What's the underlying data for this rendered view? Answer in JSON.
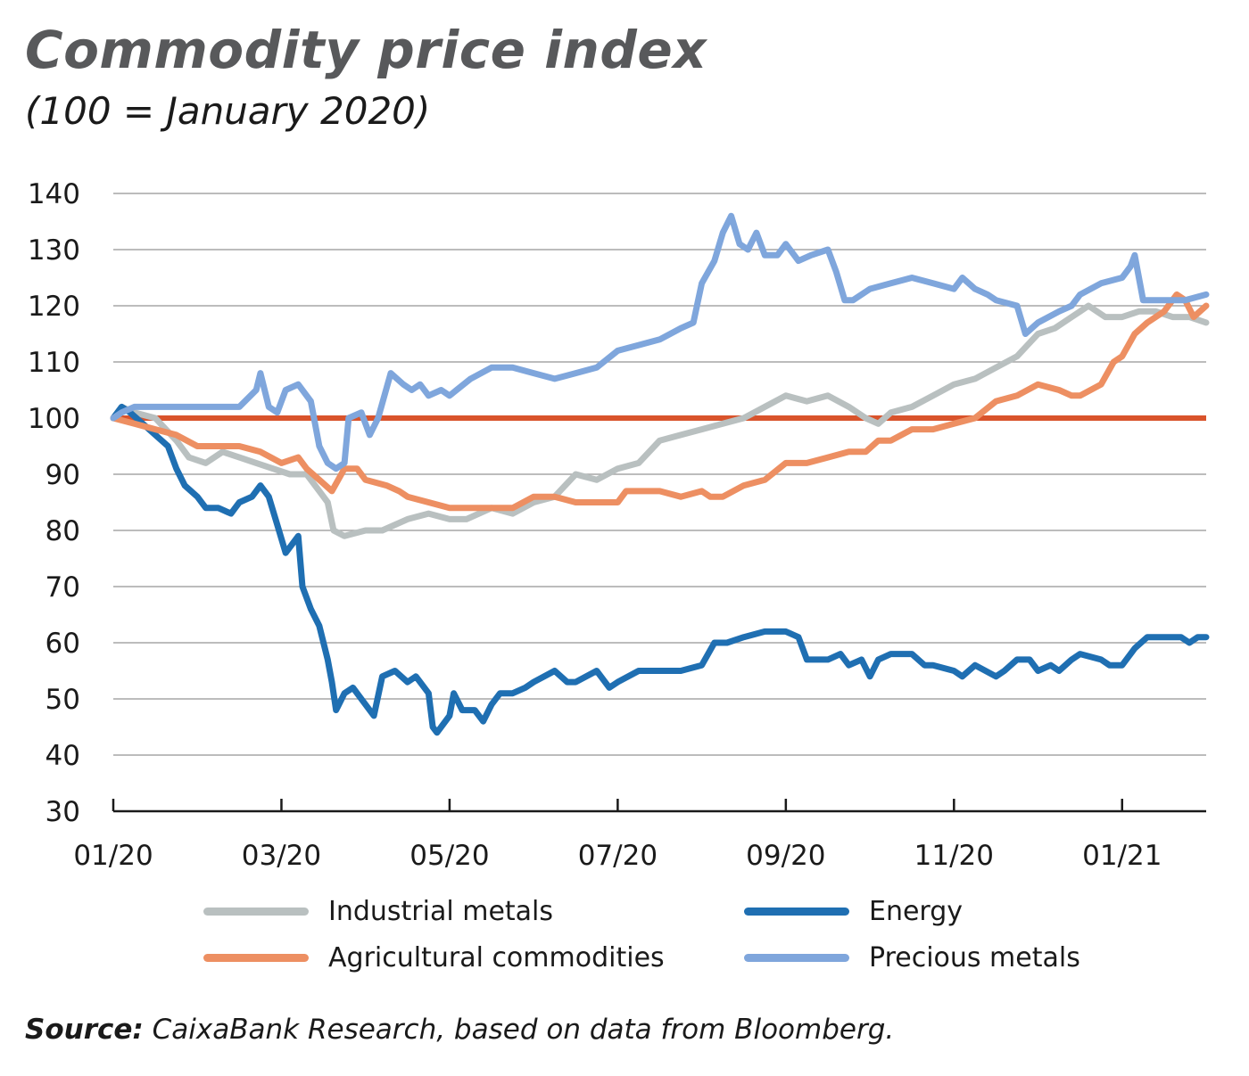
{
  "header": {
    "title": "Commodity price index",
    "subtitle": "(100 = January 2020)"
  },
  "source": {
    "label": "Source:",
    "text": "CaixaBank Research, based on data from Bloomberg."
  },
  "chart_data": {
    "type": "line",
    "title": "Commodity price index",
    "subtitle": "(100 = January 2020)",
    "xlabel": "",
    "ylabel": "",
    "ylim": [
      30,
      140
    ],
    "yticks": [
      30,
      40,
      50,
      60,
      70,
      80,
      90,
      100,
      110,
      120,
      130,
      140
    ],
    "xlim": [
      0,
      13.0
    ],
    "xticks": [
      {
        "pos": 0,
        "label": "01/20"
      },
      {
        "pos": 2,
        "label": "03/20"
      },
      {
        "pos": 4,
        "label": "05/20"
      },
      {
        "pos": 6,
        "label": "07/20"
      },
      {
        "pos": 8,
        "label": "09/20"
      },
      {
        "pos": 10,
        "label": "11/20"
      },
      {
        "pos": 12,
        "label": "01/21"
      }
    ],
    "grid": "horizontal",
    "legend_position": "bottom",
    "reference_line": {
      "y": 100,
      "color": "#d9532b"
    },
    "series": [
      {
        "name": "Industrial metals",
        "color": "#b9c0c0",
        "points": [
          [
            0,
            100
          ],
          [
            0.1,
            102
          ],
          [
            0.25,
            101
          ],
          [
            0.5,
            100
          ],
          [
            0.75,
            96
          ],
          [
            0.9,
            93
          ],
          [
            1.1,
            92
          ],
          [
            1.3,
            94
          ],
          [
            1.5,
            93
          ],
          [
            1.7,
            92
          ],
          [
            1.9,
            91
          ],
          [
            2.1,
            90
          ],
          [
            2.3,
            90
          ],
          [
            2.45,
            87
          ],
          [
            2.55,
            85
          ],
          [
            2.62,
            80
          ],
          [
            2.75,
            79
          ],
          [
            3.0,
            80
          ],
          [
            3.2,
            80
          ],
          [
            3.5,
            82
          ],
          [
            3.75,
            83
          ],
          [
            4.0,
            82
          ],
          [
            4.2,
            82
          ],
          [
            4.5,
            84
          ],
          [
            4.75,
            83
          ],
          [
            5.0,
            85
          ],
          [
            5.25,
            86
          ],
          [
            5.5,
            90
          ],
          [
            5.75,
            89
          ],
          [
            6.0,
            91
          ],
          [
            6.25,
            92
          ],
          [
            6.5,
            96
          ],
          [
            6.75,
            97
          ],
          [
            7.0,
            98
          ],
          [
            7.25,
            99
          ],
          [
            7.5,
            100
          ],
          [
            7.75,
            102
          ],
          [
            8.0,
            104
          ],
          [
            8.25,
            103
          ],
          [
            8.5,
            104
          ],
          [
            8.75,
            102
          ],
          [
            8.95,
            100
          ],
          [
            9.1,
            99
          ],
          [
            9.25,
            101
          ],
          [
            9.5,
            102
          ],
          [
            9.75,
            104
          ],
          [
            10.0,
            106
          ],
          [
            10.25,
            107
          ],
          [
            10.5,
            109
          ],
          [
            10.75,
            111
          ],
          [
            11.0,
            115
          ],
          [
            11.2,
            116
          ],
          [
            11.4,
            118
          ],
          [
            11.5,
            119
          ],
          [
            11.6,
            120
          ],
          [
            11.8,
            118
          ],
          [
            12.0,
            118
          ],
          [
            12.2,
            119
          ],
          [
            12.4,
            119
          ],
          [
            12.6,
            118
          ],
          [
            12.8,
            118
          ],
          [
            13.0,
            117
          ]
        ]
      },
      {
        "name": "Energy",
        "color": "#1f6fb2",
        "points": [
          [
            0,
            100
          ],
          [
            0.1,
            102
          ],
          [
            0.2,
            101
          ],
          [
            0.35,
            99
          ],
          [
            0.5,
            97
          ],
          [
            0.65,
            95
          ],
          [
            0.75,
            91
          ],
          [
            0.85,
            88
          ],
          [
            1.0,
            86
          ],
          [
            1.1,
            84
          ],
          [
            1.25,
            84
          ],
          [
            1.4,
            83
          ],
          [
            1.5,
            85
          ],
          [
            1.65,
            86
          ],
          [
            1.75,
            88
          ],
          [
            1.85,
            86
          ],
          [
            1.95,
            81
          ],
          [
            2.05,
            76
          ],
          [
            2.15,
            78
          ],
          [
            2.2,
            79
          ],
          [
            2.25,
            70
          ],
          [
            2.35,
            66
          ],
          [
            2.45,
            63
          ],
          [
            2.55,
            57
          ],
          [
            2.6,
            53
          ],
          [
            2.65,
            48
          ],
          [
            2.75,
            51
          ],
          [
            2.85,
            52
          ],
          [
            3.0,
            49
          ],
          [
            3.1,
            47
          ],
          [
            3.2,
            54
          ],
          [
            3.35,
            55
          ],
          [
            3.5,
            53
          ],
          [
            3.6,
            54
          ],
          [
            3.75,
            51
          ],
          [
            3.8,
            45
          ],
          [
            3.85,
            44
          ],
          [
            3.9,
            45
          ],
          [
            4.0,
            47
          ],
          [
            4.05,
            51
          ],
          [
            4.15,
            48
          ],
          [
            4.3,
            48
          ],
          [
            4.4,
            46
          ],
          [
            4.5,
            49
          ],
          [
            4.6,
            51
          ],
          [
            4.75,
            51
          ],
          [
            4.9,
            52
          ],
          [
            5.0,
            53
          ],
          [
            5.25,
            55
          ],
          [
            5.4,
            53
          ],
          [
            5.5,
            53
          ],
          [
            5.75,
            55
          ],
          [
            5.9,
            52
          ],
          [
            6.0,
            53
          ],
          [
            6.25,
            55
          ],
          [
            6.5,
            55
          ],
          [
            6.75,
            55
          ],
          [
            7.0,
            56
          ],
          [
            7.15,
            60
          ],
          [
            7.3,
            60
          ],
          [
            7.5,
            61
          ],
          [
            7.75,
            62
          ],
          [
            8.0,
            62
          ],
          [
            8.15,
            61
          ],
          [
            8.25,
            57
          ],
          [
            8.5,
            57
          ],
          [
            8.65,
            58
          ],
          [
            8.75,
            56
          ],
          [
            8.9,
            57
          ],
          [
            9.0,
            54
          ],
          [
            9.1,
            57
          ],
          [
            9.25,
            58
          ],
          [
            9.5,
            58
          ],
          [
            9.65,
            56
          ],
          [
            9.75,
            56
          ],
          [
            10.0,
            55
          ],
          [
            10.1,
            54
          ],
          [
            10.25,
            56
          ],
          [
            10.5,
            54
          ],
          [
            10.6,
            55
          ],
          [
            10.75,
            57
          ],
          [
            10.9,
            57
          ],
          [
            11.0,
            55
          ],
          [
            11.15,
            56
          ],
          [
            11.25,
            55
          ],
          [
            11.4,
            57
          ],
          [
            11.5,
            58
          ],
          [
            11.75,
            57
          ],
          [
            11.85,
            56
          ],
          [
            12.0,
            56
          ],
          [
            12.15,
            59
          ],
          [
            12.3,
            61
          ],
          [
            12.5,
            61
          ],
          [
            12.7,
            61
          ],
          [
            12.8,
            60
          ],
          [
            12.9,
            61
          ],
          [
            13.0,
            61
          ]
        ]
      },
      {
        "name": "Agricultural commodities",
        "color": "#ed8f62",
        "points": [
          [
            0,
            100
          ],
          [
            0.25,
            99
          ],
          [
            0.5,
            98
          ],
          [
            0.75,
            97
          ],
          [
            1.0,
            95
          ],
          [
            1.25,
            95
          ],
          [
            1.5,
            95
          ],
          [
            1.75,
            94
          ],
          [
            2.0,
            92
          ],
          [
            2.2,
            93
          ],
          [
            2.3,
            91
          ],
          [
            2.45,
            89
          ],
          [
            2.6,
            87
          ],
          [
            2.75,
            91
          ],
          [
            2.9,
            91
          ],
          [
            3.0,
            89
          ],
          [
            3.25,
            88
          ],
          [
            3.4,
            87
          ],
          [
            3.5,
            86
          ],
          [
            3.75,
            85
          ],
          [
            4.0,
            84
          ],
          [
            4.25,
            84
          ],
          [
            4.5,
            84
          ],
          [
            4.75,
            84
          ],
          [
            5.0,
            86
          ],
          [
            5.25,
            86
          ],
          [
            5.5,
            85
          ],
          [
            5.75,
            85
          ],
          [
            6.0,
            85
          ],
          [
            6.1,
            87
          ],
          [
            6.25,
            87
          ],
          [
            6.5,
            87
          ],
          [
            6.75,
            86
          ],
          [
            7.0,
            87
          ],
          [
            7.1,
            86
          ],
          [
            7.25,
            86
          ],
          [
            7.5,
            88
          ],
          [
            7.75,
            89
          ],
          [
            8.0,
            92
          ],
          [
            8.25,
            92
          ],
          [
            8.5,
            93
          ],
          [
            8.75,
            94
          ],
          [
            8.95,
            94
          ],
          [
            9.1,
            96
          ],
          [
            9.25,
            96
          ],
          [
            9.5,
            98
          ],
          [
            9.75,
            98
          ],
          [
            10.0,
            99
          ],
          [
            10.25,
            100
          ],
          [
            10.5,
            103
          ],
          [
            10.75,
            104
          ],
          [
            11.0,
            106
          ],
          [
            11.25,
            105
          ],
          [
            11.4,
            104
          ],
          [
            11.5,
            104
          ],
          [
            11.75,
            106
          ],
          [
            11.9,
            110
          ],
          [
            12.0,
            111
          ],
          [
            12.15,
            115
          ],
          [
            12.3,
            117
          ],
          [
            12.5,
            119
          ],
          [
            12.65,
            122
          ],
          [
            12.75,
            121
          ],
          [
            12.85,
            118
          ],
          [
            13.0,
            120
          ]
        ]
      },
      {
        "name": "Precious metals",
        "color": "#7fa6dc",
        "points": [
          [
            0,
            100
          ],
          [
            0.1,
            101
          ],
          [
            0.25,
            102
          ],
          [
            0.5,
            102
          ],
          [
            0.75,
            102
          ],
          [
            1.0,
            102
          ],
          [
            1.25,
            102
          ],
          [
            1.5,
            102
          ],
          [
            1.7,
            105
          ],
          [
            1.75,
            108
          ],
          [
            1.85,
            102
          ],
          [
            1.95,
            101
          ],
          [
            2.05,
            105
          ],
          [
            2.2,
            106
          ],
          [
            2.35,
            103
          ],
          [
            2.45,
            95
          ],
          [
            2.55,
            92
          ],
          [
            2.65,
            91
          ],
          [
            2.75,
            92
          ],
          [
            2.8,
            100
          ],
          [
            2.95,
            101
          ],
          [
            3.05,
            97
          ],
          [
            3.15,
            100
          ],
          [
            3.3,
            108
          ],
          [
            3.45,
            106
          ],
          [
            3.55,
            105
          ],
          [
            3.65,
            106
          ],
          [
            3.75,
            104
          ],
          [
            3.9,
            105
          ],
          [
            4.0,
            104
          ],
          [
            4.25,
            107
          ],
          [
            4.5,
            109
          ],
          [
            4.75,
            109
          ],
          [
            5.0,
            108
          ],
          [
            5.25,
            107
          ],
          [
            5.5,
            108
          ],
          [
            5.75,
            109
          ],
          [
            6.0,
            112
          ],
          [
            6.25,
            113
          ],
          [
            6.5,
            114
          ],
          [
            6.75,
            116
          ],
          [
            6.9,
            117
          ],
          [
            7.0,
            124
          ],
          [
            7.15,
            128
          ],
          [
            7.25,
            133
          ],
          [
            7.35,
            136
          ],
          [
            7.45,
            131
          ],
          [
            7.55,
            130
          ],
          [
            7.65,
            133
          ],
          [
            7.75,
            129
          ],
          [
            7.9,
            129
          ],
          [
            8.0,
            131
          ],
          [
            8.15,
            128
          ],
          [
            8.3,
            129
          ],
          [
            8.5,
            130
          ],
          [
            8.6,
            126
          ],
          [
            8.7,
            121
          ],
          [
            8.8,
            121
          ],
          [
            9.0,
            123
          ],
          [
            9.25,
            124
          ],
          [
            9.5,
            125
          ],
          [
            9.75,
            124
          ],
          [
            10.0,
            123
          ],
          [
            10.1,
            125
          ],
          [
            10.25,
            123
          ],
          [
            10.4,
            122
          ],
          [
            10.5,
            121
          ],
          [
            10.75,
            120
          ],
          [
            10.85,
            115
          ],
          [
            11.0,
            117
          ],
          [
            11.25,
            119
          ],
          [
            11.4,
            120
          ],
          [
            11.5,
            122
          ],
          [
            11.75,
            124
          ],
          [
            12.0,
            125
          ],
          [
            12.1,
            127
          ],
          [
            12.15,
            129
          ],
          [
            12.25,
            121
          ],
          [
            12.5,
            121
          ],
          [
            12.75,
            121
          ],
          [
            13.0,
            122
          ]
        ]
      }
    ]
  },
  "legend": {
    "items": [
      {
        "name": "Industrial metals",
        "color": "#b9c0c0"
      },
      {
        "name": "Energy",
        "color": "#1f6fb2"
      },
      {
        "name": "Agricultural commodities",
        "color": "#ed8f62"
      },
      {
        "name": "Precious metals",
        "color": "#7fa6dc"
      }
    ]
  }
}
